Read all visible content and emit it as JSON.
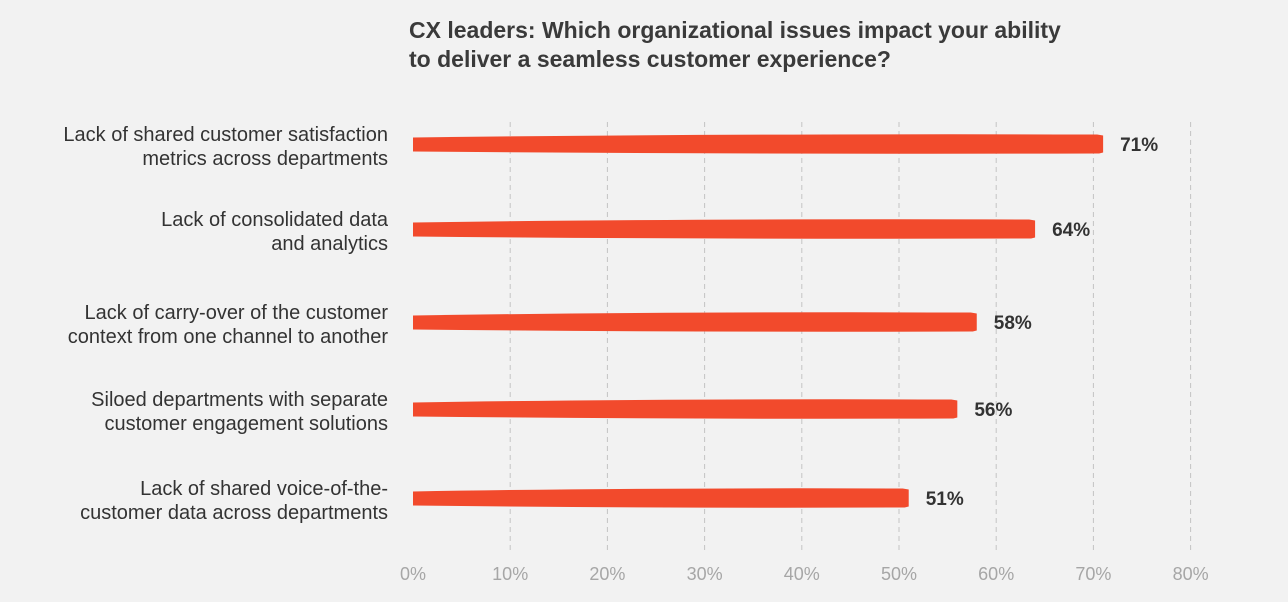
{
  "chart_data": {
    "type": "bar",
    "orientation": "horizontal",
    "title": [
      "CX leaders: Which organizational issues impact your ability",
      "to deliver a seamless customer experience?"
    ],
    "categories": [
      [
        "Lack of shared customer satisfaction",
        "metrics across departments"
      ],
      [
        "Lack of consolidated data",
        "and analytics"
      ],
      [
        "Lack of carry-over of the customer",
        "context from one channel to another"
      ],
      [
        "Siloed departments with separate",
        "customer engagement solutions"
      ],
      [
        "Lack of shared voice-of-the-",
        "customer data across departments"
      ]
    ],
    "values": [
      71,
      64,
      58,
      56,
      51
    ],
    "value_labels": [
      "71%",
      "64%",
      "58%",
      "56%",
      "51%"
    ],
    "xlim": [
      0,
      80
    ],
    "x_ticks": [
      0,
      10,
      20,
      30,
      40,
      50,
      60,
      70,
      80
    ],
    "x_tick_labels": [
      "0%",
      "10%",
      "20%",
      "30%",
      "40%",
      "50%",
      "60%",
      "70%",
      "80%"
    ],
    "grid": "vertical dashed",
    "colors": {
      "bar": "#f24a2c",
      "grid": "#c4c4c4",
      "background": "#f2f2f2"
    }
  }
}
